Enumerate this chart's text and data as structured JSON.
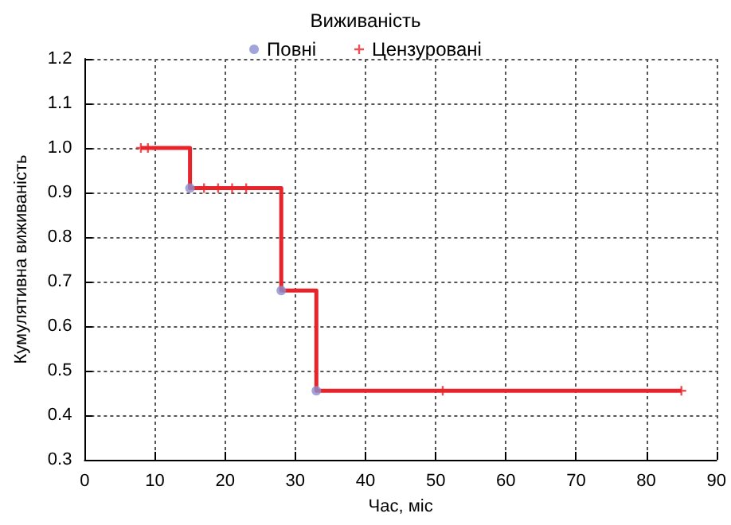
{
  "chart_data": {
    "type": "step",
    "legend_title": "Виживаність",
    "xlabel": "Час, міс",
    "ylabel": "Кумулятивна виживаність",
    "xlim": [
      0,
      90
    ],
    "xticks": [
      0,
      10,
      20,
      30,
      40,
      50,
      60,
      70,
      80,
      90
    ],
    "ylim": [
      0.3,
      1.2
    ],
    "yticks": [
      0.3,
      0.4,
      0.5,
      0.6,
      0.7,
      0.8,
      0.9,
      {
        "value": 1,
        "label": "1.0"
      },
      1.1,
      1.2
    ],
    "grid": true,
    "legend": "top",
    "line_style": "solid",
    "series": [
      {
        "color": "#e8242b",
        "marker": "none",
        "x": [
          8,
          15,
          28,
          33,
          85
        ],
        "values": [
          1.0,
          0.91,
          0.68,
          0.455,
          0.455
        ]
      },
      {
        "type": "scatter",
        "name": "Повні",
        "color": "#8a8fd0",
        "marker": "circle",
        "x": [
          15,
          28,
          33
        ],
        "values": [
          0.91,
          0.68,
          0.455
        ]
      },
      {
        "type": "scatter",
        "name": "Цензуровані",
        "color": "#e8242b",
        "marker": "cross",
        "x": [
          8,
          9,
          17,
          19,
          21,
          23,
          51,
          85
        ],
        "values": [
          1.0,
          1.0,
          0.91,
          0.91,
          0.91,
          0.91,
          0.455,
          0.455
        ]
      }
    ]
  }
}
